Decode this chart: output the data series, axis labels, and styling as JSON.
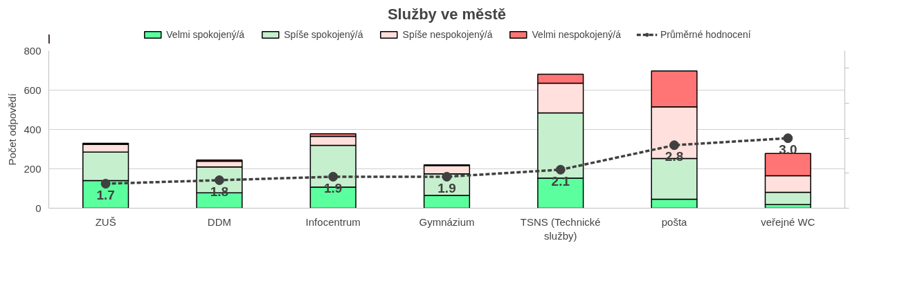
{
  "chart_data": {
    "type": "bar",
    "title": "Služby ve městě",
    "ylabel": "Počet odpovědí",
    "categories": [
      "ZUŠ",
      "DDM",
      "Infocentrum",
      "Gymnázium",
      "TSNS (Technické služby)",
      "pošta",
      "veřejné WC"
    ],
    "stacked": true,
    "series": [
      {
        "name": "Velmi spokojený/á",
        "color": "#5cff9e",
        "values": [
          140,
          78,
          107,
          65,
          153,
          46,
          18
        ]
      },
      {
        "name": "Spíše spokojený/á",
        "color": "#c6efce",
        "values": [
          145,
          132,
          212,
          110,
          331,
          207,
          63
        ]
      },
      {
        "name": "Spíše nespokojený/á",
        "color": "#ffe0dc",
        "values": [
          40,
          29,
          46,
          42,
          151,
          262,
          84
        ]
      },
      {
        "name": "Velmi nespokojený/á",
        "color": "#ff7575",
        "values": [
          5,
          6,
          13,
          3,
          46,
          182,
          113
        ]
      },
      {
        "name": "Průměrné hodnocení",
        "type": "line",
        "axis": "y2",
        "color": "#404040",
        "marker": "circle",
        "line_style": "dashed",
        "values": [
          1.7,
          1.8,
          1.9,
          1.9,
          2.1,
          2.8,
          3.0
        ],
        "value_labels": [
          "1.7",
          "1.8",
          "1.9",
          "1.9",
          "2.1",
          "2.8",
          "3.0"
        ]
      }
    ],
    "ylim": [
      0,
      800
    ],
    "yticks": [
      0,
      200,
      400,
      600,
      800
    ],
    "y2lim": [
      1,
      5.5
    ],
    "y2ticks": [
      {
        "value": 1,
        "label": null
      },
      {
        "value": 2,
        "label": null
      },
      {
        "value": 3,
        "label": null
      },
      {
        "value": 4,
        "label": null
      },
      {
        "value": 5,
        "label": null
      }
    ],
    "grid": "y",
    "legend": "top"
  }
}
